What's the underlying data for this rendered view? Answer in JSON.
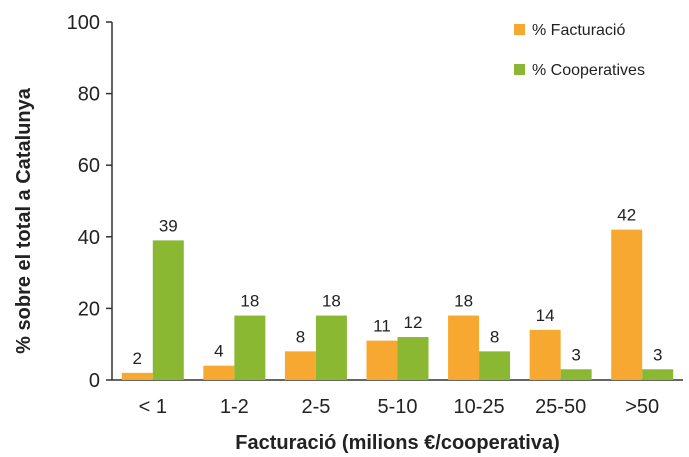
{
  "chart_data": {
    "type": "bar",
    "title": "",
    "xlabel": "Facturació (milions €/cooperativa)",
    "ylabel": "% sobre el total a Catalunya",
    "categories": [
      "< 1",
      "1-2",
      "2-5",
      "5-10",
      "10-25",
      "25-50",
      ">50"
    ],
    "series": [
      {
        "name": "% Facturació",
        "color": "#f7a830",
        "values": [
          2,
          4,
          8,
          11,
          18,
          14,
          42
        ]
      },
      {
        "name": "% Cooperatives",
        "color": "#8ab833",
        "values": [
          39,
          18,
          18,
          12,
          8,
          3,
          3
        ]
      }
    ],
    "ylim": [
      0,
      100
    ],
    "yticks": [
      0,
      20,
      40,
      60,
      80,
      100
    ],
    "grid": false,
    "legend": "top-right"
  }
}
